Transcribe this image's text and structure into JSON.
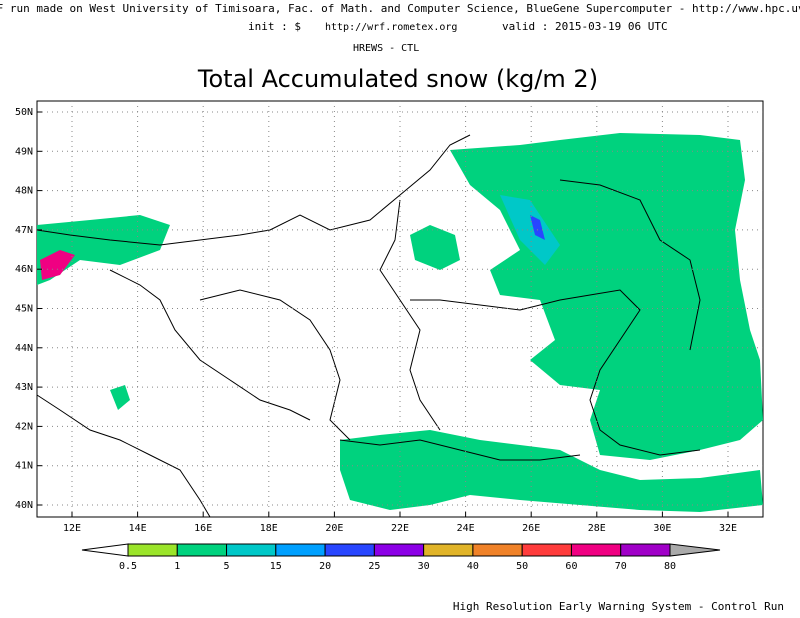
{
  "header": {
    "credit": "RF run made on West University of Timisoara, Fac. of Math. and Computer Science, BlueGene Supercomputer - http://www.hpc.uvt.ro",
    "init": "init : $",
    "url": "http://wrf.rometex.org",
    "valid": "valid : 2015-03-19  06 UTC",
    "run": "HREWS - CTL"
  },
  "title": "Total Accumulated snow (kg/m   2)",
  "map": {
    "lat_labels": [
      "50N",
      "49N",
      "48N",
      "47N",
      "46N",
      "45N",
      "44N",
      "43N",
      "42N",
      "41N",
      "40N"
    ],
    "lon_labels": [
      "12E",
      "14E",
      "16E",
      "18E",
      "20E",
      "22E",
      "24E",
      "26E",
      "28E",
      "30E",
      "32E"
    ]
  },
  "colorbar": {
    "levels": [
      0.5,
      1,
      5,
      15,
      20,
      25,
      30,
      40,
      50,
      60,
      70,
      80
    ],
    "colors": [
      "#9be52a",
      "#00d27e",
      "#00c8c8",
      "#00a0ff",
      "#2846ff",
      "#8c00e6",
      "#e1b428",
      "#f08228",
      "#ff3c3c",
      "#f00082",
      "#a000c8"
    ]
  },
  "footer": "High Resolution Early Warning System - Control Run"
}
